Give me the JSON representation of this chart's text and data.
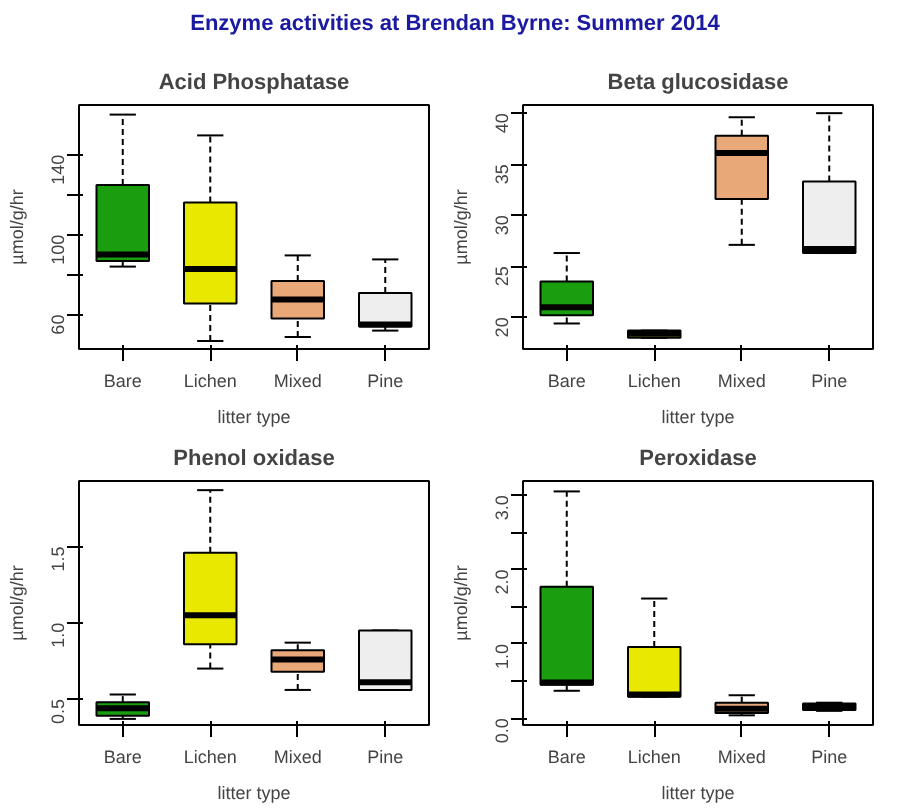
{
  "chart_data": [
    {
      "type": "box",
      "title": "Acid Phosphatase",
      "xlabel": "litter type",
      "ylabel": "µmol/g/hr",
      "annotations": [
        "Enzyme activities at Brendan Byrne: Summer 2014"
      ],
      "categories": [
        "Bare",
        "Lichen",
        "Mixed",
        "Pine"
      ],
      "colors": [
        "#1a9e10",
        "#e8e800",
        "#e8a878",
        "#eeeeee"
      ],
      "ylim": [
        42.8,
        164.8
      ],
      "yticks": [
        60,
        {
          "value": 80,
          "label": null
        },
        100,
        {
          "value": 120,
          "label": null
        },
        140
      ],
      "grid": false,
      "boxes": [
        {
          "low": 84,
          "q1": 86.8,
          "median": 90,
          "q3": 124.8,
          "high": 160
        },
        {
          "low": 46.8,
          "q1": 65.6,
          "median": 82.8,
          "q3": 116,
          "high": 149.6
        },
        {
          "low": 48.8,
          "q1": 58,
          "median": 67.6,
          "q3": 76.8,
          "high": 89.6
        },
        {
          "low": 52,
          "q1": 54,
          "median": 55,
          "q3": 70.8,
          "high": 87.6
        }
      ]
    },
    {
      "type": "box",
      "title": "Beta glucosidase",
      "xlabel": "litter type",
      "ylabel": "µmol/g/hr",
      "categories": [
        "Bare",
        "Lichen",
        "Mixed",
        "Pine"
      ],
      "colors": [
        "#1a9e10",
        "#e8e800",
        "#e8a878",
        "#eeeeee"
      ],
      "ylim": [
        16.9,
        40.8
      ],
      "yticks": [
        20,
        25,
        30,
        35,
        40
      ],
      "grid": false,
      "boxes": [
        {
          "low": 19.4,
          "q1": 20.2,
          "median": 21.0,
          "q3": 23.5,
          "high": 26.3
        },
        {
          "low": 18.0,
          "q1": 18.0,
          "median": 18.4,
          "q3": 18.7,
          "high": 18.7
        },
        {
          "low": 27.1,
          "q1": 31.6,
          "median": 36.1,
          "q3": 37.8,
          "high": 39.6
        },
        {
          "low": 26.3,
          "q1": 26.3,
          "median": 26.7,
          "q3": 33.3,
          "high": 40
        }
      ]
    },
    {
      "type": "box",
      "title": "Phenol oxidase",
      "xlabel": "litter type",
      "ylabel": "µmol/g/hr",
      "categories": [
        "Bare",
        "Lichen",
        "Mixed",
        "Pine"
      ],
      "colors": [
        "#1a9e10",
        "#e8e800",
        "#e8a878",
        "#eeeeee"
      ],
      "ylim": [
        0.33,
        1.93
      ],
      "yticks": [
        0.5,
        {
          "value": 1,
          "label": "1.0"
        },
        1.5
      ],
      "grid": false,
      "boxes": [
        {
          "low": 0.37,
          "q1": 0.39,
          "median": 0.44,
          "q3": 0.48,
          "high": 0.53
        },
        {
          "low": 0.7,
          "q1": 0.86,
          "median": 1.05,
          "q3": 1.46,
          "high": 1.87
        },
        {
          "low": 0.56,
          "q1": 0.68,
          "median": 0.76,
          "q3": 0.82,
          "high": 0.87
        },
        {
          "low": 0.56,
          "q1": 0.56,
          "median": 0.61,
          "q3": 0.95,
          "high": 0.95
        }
      ]
    },
    {
      "type": "box",
      "title": "Peroxidase",
      "xlabel": "litter type",
      "ylabel": "µmol/g/hr",
      "categories": [
        "Bare",
        "Lichen",
        "Mixed",
        "Pine"
      ],
      "colors": [
        "#1a9e10",
        "#e8e800",
        "#e8a878",
        "#eeeeee"
      ],
      "ylim": [
        -0.09,
        3.19
      ],
      "yticks": [
        {
          "value": 0,
          "label": "0.0"
        },
        {
          "value": 0.5,
          "label": null
        },
        {
          "value": 1,
          "label": "1.0"
        },
        {
          "value": 1.5,
          "label": null
        },
        {
          "value": 2,
          "label": "2.0"
        },
        {
          "value": 2.5,
          "label": null
        },
        {
          "value": 3,
          "label": "3.0"
        }
      ],
      "grid": false,
      "boxes": [
        {
          "low": 0.37,
          "q1": 0.45,
          "median": 0.48,
          "q3": 1.77,
          "high": 3.05
        },
        {
          "low": 0.29,
          "q1": 0.29,
          "median": 0.32,
          "q3": 0.96,
          "high": 1.61
        },
        {
          "low": 0.04,
          "q1": 0.07,
          "median": 0.13,
          "q3": 0.21,
          "high": 0.31
        },
        {
          "low": 0.1,
          "q1": 0.11,
          "median": 0.16,
          "q3": 0.2,
          "high": 0.21
        }
      ]
    }
  ]
}
